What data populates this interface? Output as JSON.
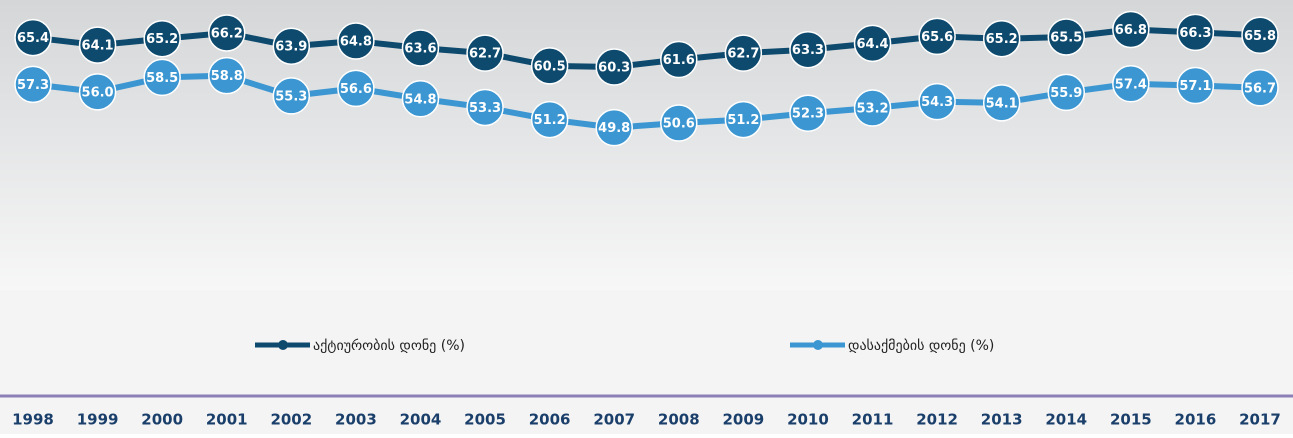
{
  "chart_data": {
    "type": "line",
    "categories": [
      "1998",
      "1999",
      "2000",
      "2001",
      "2002",
      "2003",
      "2004",
      "2005",
      "2006",
      "2007",
      "2008",
      "2009",
      "2010",
      "2011",
      "2012",
      "2013",
      "2014",
      "2015",
      "2016",
      "2017"
    ],
    "series": [
      {
        "name": "აქტიურობის დონე (%)",
        "color": "#0e4a6e",
        "values": [
          65.4,
          64.1,
          65.2,
          66.2,
          63.9,
          64.8,
          63.6,
          62.7,
          60.5,
          60.3,
          61.6,
          62.7,
          63.3,
          64.4,
          65.6,
          65.2,
          65.5,
          66.8,
          66.3,
          65.8
        ],
        "value_labels": [
          "65.4",
          "64.1",
          "65.2",
          "66.2",
          "63.9",
          "64.8",
          "63.6",
          "62.7",
          "60.5",
          "60.3",
          "61.6",
          "62.7",
          "63.3",
          "64.4",
          "65.6",
          "65.2",
          "65.5",
          "66.8",
          "66.3",
          "65.8"
        ]
      },
      {
        "name": "დასაქმების დონე (%)",
        "color": "#3b96d2",
        "values": [
          57.3,
          56,
          58.5,
          58.8,
          55.3,
          56.6,
          54.8,
          53.3,
          51.2,
          49.8,
          50.6,
          51.2,
          52.3,
          53.2,
          54.3,
          54.1,
          55.9,
          57.4,
          57.1,
          56.7
        ],
        "value_labels": [
          "57.3",
          "56.0",
          "58.5",
          "58.8",
          "55.3",
          "56.6",
          "54.8",
          "53.3",
          "51.2",
          "49.8",
          "50.6",
          "51.2",
          "52.3",
          "53.2",
          "54.3",
          "54.1",
          "55.9",
          "57.4",
          "57.1",
          "56.7"
        ]
      }
    ],
    "ylim": [
      30,
      70
    ]
  }
}
